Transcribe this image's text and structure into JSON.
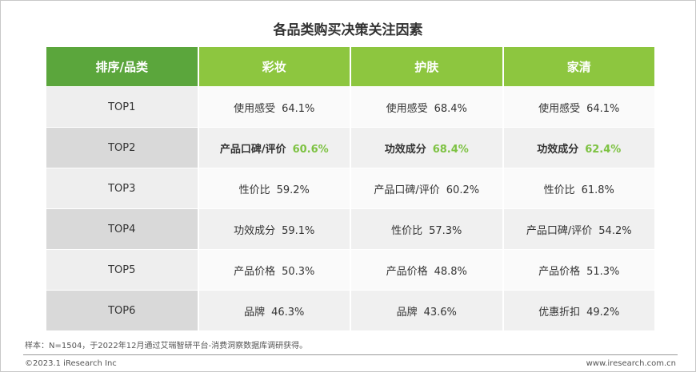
{
  "title": "各品类购买决策关注因素",
  "table": {
    "header": [
      "排序/品类",
      "彩妆",
      "护肤",
      "家清"
    ],
    "rows": [
      {
        "label": "TOP1",
        "cells": [
          {
            "factor": "使用感受",
            "value": "64.1%"
          },
          {
            "factor": "使用感受",
            "value": "68.4%"
          },
          {
            "factor": "使用感受",
            "value": "64.1%"
          }
        ]
      },
      {
        "label": "TOP2",
        "cells": [
          {
            "factor": "产品口碑/评价",
            "value": "60.6%"
          },
          {
            "factor": "功效成分",
            "value": "68.4%"
          },
          {
            "factor": "功效成分",
            "value": "62.4%"
          }
        ]
      },
      {
        "label": "TOP3",
        "cells": [
          {
            "factor": "性价比",
            "value": "59.2%"
          },
          {
            "factor": "产品口碑/评价",
            "value": "60.2%"
          },
          {
            "factor": "性价比",
            "value": "61.8%"
          }
        ]
      },
      {
        "label": "TOP4",
        "cells": [
          {
            "factor": "功效成分",
            "value": "59.1%"
          },
          {
            "factor": "性价比",
            "value": "57.3%"
          },
          {
            "factor": "产品口碑/评价",
            "value": "54.2%"
          }
        ]
      },
      {
        "label": "TOP5",
        "cells": [
          {
            "factor": "产品价格",
            "value": "50.3%"
          },
          {
            "factor": "产品价格",
            "value": "48.8%"
          },
          {
            "factor": "产品价格",
            "value": "51.3%"
          }
        ]
      },
      {
        "label": "TOP6",
        "cells": [
          {
            "factor": "品牌",
            "value": "46.3%"
          },
          {
            "factor": "品牌",
            "value": "43.6%"
          },
          {
            "factor": "优惠折扣",
            "value": "49.2%"
          }
        ]
      }
    ]
  },
  "footer": {
    "note": "样本：N=1504，于2022年12月通过艾瑞智研平台-消费洞察数据库调研获得。",
    "copyright": "©2023.1 iResearch Inc",
    "website": "www.iresearch.com.cn"
  }
}
